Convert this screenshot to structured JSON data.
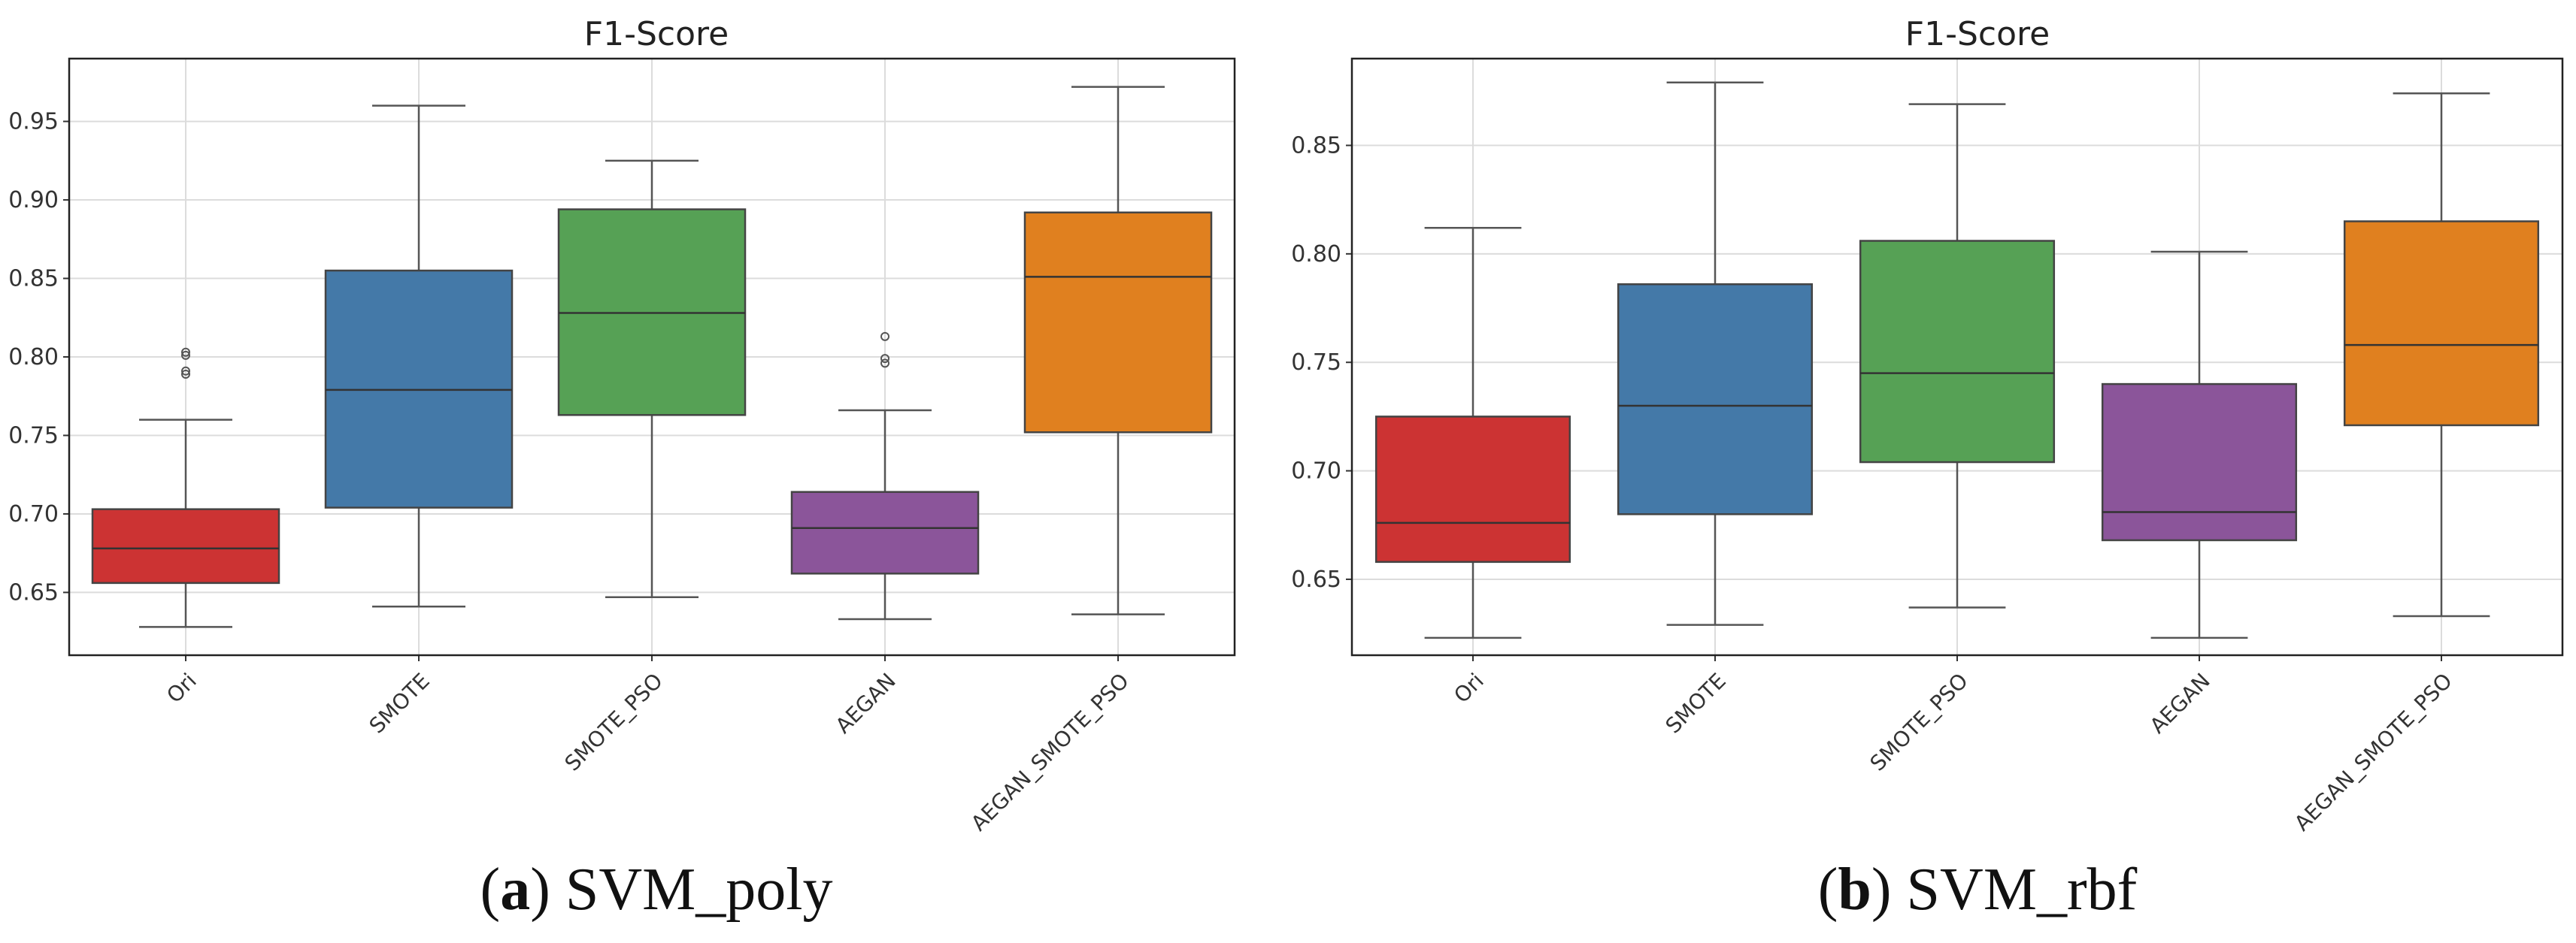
{
  "chart_data": [
    {
      "type": "box",
      "title": "F1-Score",
      "caption_letter": "a",
      "caption_text": "SVM_poly",
      "categories": [
        "Ori",
        "SMOTE",
        "SMOTE_PSO",
        "AEGAN",
        "AEGAN_SMOTE_PSO"
      ],
      "colors": [
        "#cc3333",
        "#4479a8",
        "#56a155",
        "#8b559a",
        "#e0801f"
      ],
      "boxes": [
        {
          "whisker_low": 0.628,
          "q1": 0.656,
          "median": 0.678,
          "q3": 0.703,
          "whisker_high": 0.76,
          "outliers": [
            0.789,
            0.791,
            0.801,
            0.803
          ]
        },
        {
          "whisker_low": 0.641,
          "q1": 0.704,
          "median": 0.779,
          "q3": 0.855,
          "whisker_high": 0.96,
          "outliers": []
        },
        {
          "whisker_low": 0.647,
          "q1": 0.763,
          "median": 0.828,
          "q3": 0.894,
          "whisker_high": 0.925,
          "outliers": []
        },
        {
          "whisker_low": 0.633,
          "q1": 0.662,
          "median": 0.691,
          "q3": 0.714,
          "whisker_high": 0.766,
          "outliers": [
            0.796,
            0.799,
            0.813
          ]
        },
        {
          "whisker_low": 0.636,
          "q1": 0.752,
          "median": 0.851,
          "q3": 0.892,
          "whisker_high": 0.972,
          "outliers": []
        }
      ],
      "yticks": [
        0.65,
        0.7,
        0.75,
        0.8,
        0.85,
        0.9,
        0.95
      ],
      "ytick_labels": [
        "0.65",
        "0.70",
        "0.75",
        "0.80",
        "0.85",
        "0.90",
        "0.95"
      ],
      "ylim": [
        0.61,
        0.99
      ],
      "grid": true
    },
    {
      "type": "box",
      "title": "F1-Score",
      "caption_letter": "b",
      "caption_text": "SVM_rbf",
      "categories": [
        "Ori",
        "SMOTE",
        "SMOTE_PSO",
        "AEGAN",
        "AEGAN_SMOTE_PSO"
      ],
      "colors": [
        "#cc3333",
        "#4479a8",
        "#56a155",
        "#8b559a",
        "#e0801f"
      ],
      "boxes": [
        {
          "whisker_low": 0.623,
          "q1": 0.658,
          "median": 0.676,
          "q3": 0.725,
          "whisker_high": 0.812,
          "outliers": []
        },
        {
          "whisker_low": 0.629,
          "q1": 0.68,
          "median": 0.73,
          "q3": 0.786,
          "whisker_high": 0.879,
          "outliers": []
        },
        {
          "whisker_low": 0.637,
          "q1": 0.704,
          "median": 0.745,
          "q3": 0.806,
          "whisker_high": 0.869,
          "outliers": []
        },
        {
          "whisker_low": 0.623,
          "q1": 0.668,
          "median": 0.681,
          "q3": 0.74,
          "whisker_high": 0.801,
          "outliers": []
        },
        {
          "whisker_low": 0.633,
          "q1": 0.721,
          "median": 0.758,
          "q3": 0.815,
          "whisker_high": 0.874,
          "outliers": []
        }
      ],
      "yticks": [
        0.65,
        0.7,
        0.75,
        0.8,
        0.85
      ],
      "ytick_labels": [
        "0.65",
        "0.70",
        "0.75",
        "0.80",
        "0.85"
      ],
      "ylim": [
        0.615,
        0.89
      ],
      "grid": true
    }
  ]
}
